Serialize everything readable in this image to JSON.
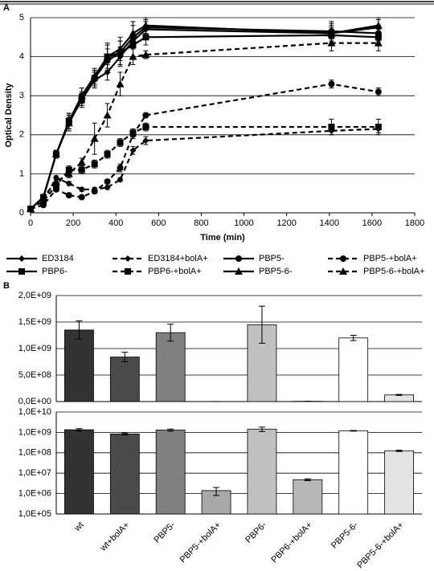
{
  "chart_data": [
    {
      "type": "line",
      "panel": "A",
      "xlabel": "Time (min)",
      "ylabel": "Optical Density",
      "x": [
        0,
        60,
        120,
        180,
        240,
        300,
        360,
        420,
        480,
        540,
        1410,
        1630
      ],
      "xlim": [
        0,
        1800
      ],
      "xticks": [
        0,
        200,
        400,
        600,
        800,
        1000,
        1200,
        1400,
        1600,
        1800
      ],
      "ylim": [
        0,
        5
      ],
      "yticks": [
        0,
        1,
        2,
        3,
        4,
        5
      ],
      "grid": true,
      "series": [
        {
          "name": "ED3184",
          "color": "#000000",
          "marker": "diamond",
          "dashed": false,
          "values": [
            0.1,
            0.4,
            1.5,
            2.3,
            2.9,
            3.4,
            3.6,
            4.0,
            4.4,
            4.7,
            4.6,
            4.75
          ],
          "errors": [
            0.02,
            0.05,
            0.1,
            0.15,
            0.15,
            0.2,
            0.2,
            0.25,
            0.2,
            0.2,
            0.3,
            0.2
          ]
        },
        {
          "name": "ED3184+bolA+",
          "color": "#000000",
          "marker": "diamond",
          "dashed": true,
          "values": [
            0.1,
            0.3,
            0.9,
            0.75,
            0.6,
            0.6,
            0.65,
            0.85,
            1.6,
            1.85,
            2.1,
            2.15
          ],
          "errors": [
            0.02,
            0.03,
            0.05,
            0.05,
            0.05,
            0.05,
            0.05,
            0.05,
            0.1,
            0.1,
            0.1,
            0.1
          ]
        },
        {
          "name": "PBP5-",
          "color": "#000000",
          "marker": "circle",
          "dashed": false,
          "values": [
            0.1,
            0.4,
            1.5,
            2.35,
            3.0,
            3.45,
            3.9,
            4.1,
            4.5,
            4.75,
            4.65,
            4.6
          ],
          "errors": [
            0.02,
            0.05,
            0.1,
            0.2,
            0.2,
            0.2,
            0.3,
            0.3,
            0.3,
            0.2,
            0.2,
            0.2
          ]
        },
        {
          "name": "PBP5-+bolA+",
          "color": "#000000",
          "marker": "circle",
          "dashed": true,
          "values": [
            0.1,
            0.2,
            0.6,
            0.45,
            0.4,
            0.55,
            0.8,
            1.15,
            2.0,
            2.5,
            3.3,
            3.1
          ],
          "errors": [
            0.02,
            0.03,
            0.05,
            0.05,
            0.05,
            0.05,
            0.05,
            0.1,
            0.1,
            0.05,
            0.1,
            0.1
          ]
        },
        {
          "name": "PBP6-",
          "color": "#000000",
          "marker": "square",
          "dashed": false,
          "values": [
            0.1,
            0.4,
            1.5,
            2.35,
            2.9,
            3.45,
            4.0,
            4.1,
            4.3,
            4.5,
            4.55,
            4.5
          ],
          "errors": [
            0.02,
            0.05,
            0.1,
            0.2,
            0.2,
            0.2,
            0.35,
            0.3,
            0.3,
            0.2,
            0.2,
            0.2
          ]
        },
        {
          "name": "PBP6-+bolA+",
          "color": "#000000",
          "marker": "square",
          "dashed": true,
          "values": [
            0.1,
            0.3,
            0.7,
            1.1,
            1.1,
            1.25,
            1.5,
            1.8,
            2.05,
            2.2,
            2.2,
            2.2
          ],
          "errors": [
            0.02,
            0.03,
            0.05,
            0.1,
            0.1,
            0.1,
            0.1,
            0.1,
            0.1,
            0.1,
            0.2,
            0.2
          ]
        },
        {
          "name": "PBP5-6-",
          "color": "#000000",
          "marker": "triangle",
          "dashed": false,
          "values": [
            0.1,
            0.4,
            1.5,
            2.3,
            3.0,
            3.5,
            4.0,
            4.2,
            4.6,
            4.8,
            4.6,
            4.8
          ],
          "errors": [
            0.02,
            0.05,
            0.1,
            0.2,
            0.2,
            0.2,
            0.3,
            0.3,
            0.3,
            0.2,
            0.2,
            0.2
          ]
        },
        {
          "name": "PBP5-6-+bolA+",
          "color": "#000000",
          "marker": "triangle",
          "dashed": true,
          "values": [
            0.1,
            0.4,
            0.8,
            1.0,
            1.3,
            1.9,
            2.5,
            3.3,
            4.0,
            4.05,
            4.35,
            4.35
          ],
          "errors": [
            0.02,
            0.03,
            0.05,
            0.1,
            0.1,
            0.4,
            0.3,
            0.3,
            0.2,
            0.1,
            0.2,
            0.2
          ]
        }
      ]
    },
    {
      "type": "bar",
      "panel": "B",
      "scale": "linear",
      "grid": true,
      "colors": [
        "#333333",
        "#4a4a4a",
        "#808080",
        "#a8a8a8",
        "#c0c0c0",
        "#b8b8b8",
        "#ffffff",
        "#e4e4e4"
      ],
      "values": [
        1350000000,
        840000000,
        1300000000,
        1400000,
        1450000000,
        4800000,
        1200000000,
        125000000
      ],
      "errors": [
        170000000,
        90000000,
        160000000,
        600000,
        350000000,
        500000,
        50000000,
        10000000
      ],
      "ylim": [
        0,
        2000000000
      ],
      "yticks": [
        {
          "value": 0,
          "label": "0,0E+00"
        },
        {
          "value": 500000000,
          "label": "5,0E+08"
        },
        {
          "value": 1000000000,
          "label": "1,0E+09"
        },
        {
          "value": 1500000000,
          "label": "1,5E+09"
        },
        {
          "value": 2000000000,
          "label": "2,0E+09"
        }
      ]
    },
    {
      "type": "bar",
      "scale": "log",
      "grid": true,
      "categories": [
        "wt",
        "wt+bolA+",
        "PBP5-",
        "PBP5-+bolA+",
        "PBP6-",
        "PBP6-+bolA+",
        "PBP5-6-",
        "PBP5-6-+bolA+"
      ],
      "colors": [
        "#333333",
        "#4a4a4a",
        "#808080",
        "#a8a8a8",
        "#c0c0c0",
        "#b8b8b8",
        "#ffffff",
        "#e4e4e4"
      ],
      "values": [
        1350000000,
        840000000,
        1300000000,
        1400000,
        1450000000,
        4800000,
        1200000000,
        125000000
      ],
      "errors": [
        170000000,
        90000000,
        160000000,
        600000,
        350000000,
        500000,
        50000000,
        10000000
      ],
      "ylim": [
        100000,
        10000000000
      ],
      "yticks": [
        {
          "value": 100000,
          "label": "1,0E+05"
        },
        {
          "value": 1000000,
          "label": "1,0E+06"
        },
        {
          "value": 10000000,
          "label": "1,0E+07"
        },
        {
          "value": 100000000,
          "label": "1,0E+08"
        },
        {
          "value": 1000000000,
          "label": "1,0E+09"
        },
        {
          "value": 10000000000,
          "label": "1,0E+10"
        }
      ]
    }
  ]
}
